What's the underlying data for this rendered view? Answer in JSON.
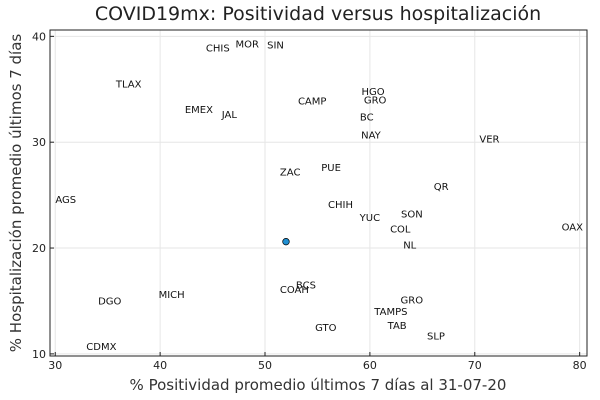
{
  "chart_data": {
    "type": "scatter",
    "title": "COVID19mx: Positividad versus hospitalización",
    "xlabel": "% Positividad promedio últimos 7 días al 31-07-20",
    "ylabel": "% Hospitalización promedio últimos 7 días",
    "xlim": [
      29.5,
      80.7
    ],
    "ylim": [
      9.8,
      40.6
    ],
    "xticks": [
      30,
      40,
      50,
      60,
      70,
      80
    ],
    "yticks": [
      10,
      20,
      30,
      40
    ],
    "grid": true,
    "legend": "none",
    "point_color": "#1f8fd2",
    "labels": [
      {
        "text": "CHIS",
        "x": 45.5,
        "y": 38.9
      },
      {
        "text": "MOR",
        "x": 48.3,
        "y": 39.3
      },
      {
        "text": "SIN",
        "x": 51.0,
        "y": 39.2
      },
      {
        "text": "TLAX",
        "x": 37.0,
        "y": 35.5
      },
      {
        "text": "HGO",
        "x": 60.3,
        "y": 34.8
      },
      {
        "text": "GRO",
        "x": 60.5,
        "y": 34.0
      },
      {
        "text": "CAMP",
        "x": 54.5,
        "y": 33.9
      },
      {
        "text": "EMEX",
        "x": 43.7,
        "y": 33.1
      },
      {
        "text": "JAL",
        "x": 46.6,
        "y": 32.6
      },
      {
        "text": "BC",
        "x": 59.7,
        "y": 32.4
      },
      {
        "text": "NAY",
        "x": 60.1,
        "y": 30.7
      },
      {
        "text": "VER",
        "x": 71.4,
        "y": 30.3
      },
      {
        "text": "ZAC",
        "x": 52.4,
        "y": 27.2
      },
      {
        "text": "PUE",
        "x": 56.3,
        "y": 27.6
      },
      {
        "text": "QR",
        "x": 66.8,
        "y": 25.8
      },
      {
        "text": "AGS",
        "x": 31.0,
        "y": 24.6
      },
      {
        "text": "CHIH",
        "x": 57.2,
        "y": 24.1
      },
      {
        "text": "SON",
        "x": 64.0,
        "y": 23.2
      },
      {
        "text": "YUC",
        "x": 60.0,
        "y": 22.9
      },
      {
        "text": "COL",
        "x": 62.9,
        "y": 21.8
      },
      {
        "text": "OAX",
        "x": 79.3,
        "y": 22.0
      },
      {
        "text": "NL",
        "x": 63.8,
        "y": 20.3
      },
      {
        "text": "BCS",
        "x": 53.9,
        "y": 16.5
      },
      {
        "text": "COAH",
        "x": 52.8,
        "y": 16.1
      },
      {
        "text": "MICH",
        "x": 41.1,
        "y": 15.6
      },
      {
        "text": "DGO",
        "x": 35.2,
        "y": 15.0
      },
      {
        "text": "GRO",
        "x": 64.0,
        "y": 15.1
      },
      {
        "text": "TAMPS",
        "x": 62.0,
        "y": 14.0
      },
      {
        "text": "TAB",
        "x": 62.6,
        "y": 12.7
      },
      {
        "text": "GTO",
        "x": 55.8,
        "y": 12.5
      },
      {
        "text": "SLP",
        "x": 66.3,
        "y": 11.7
      },
      {
        "text": "CDMX",
        "x": 34.4,
        "y": 10.7
      }
    ],
    "points": [
      {
        "x": 52.0,
        "y": 20.6
      }
    ]
  }
}
